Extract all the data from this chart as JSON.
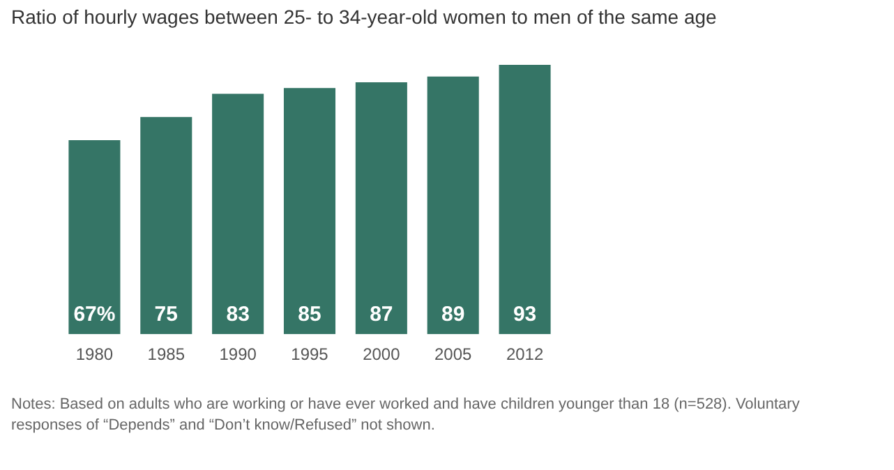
{
  "chart_data": {
    "type": "bar",
    "title": "Ratio of hourly wages between 25- to 34-year-old women to men of the same age",
    "categories": [
      "1980",
      "1985",
      "1990",
      "1995",
      "2000",
      "2005",
      "2012"
    ],
    "values": [
      67,
      75,
      83,
      85,
      87,
      89,
      93
    ],
    "value_labels": [
      "67%",
      "75",
      "83",
      "85",
      "87",
      "89",
      "93"
    ],
    "color": "#357566",
    "grid": false,
    "legend": false,
    "annotations": [
      "Notes: Based on adults who are working or have ever worked and have children younger than 18 (n=528). Voluntary responses of “Depends” and “Don’t know/Refused” not shown."
    ]
  }
}
